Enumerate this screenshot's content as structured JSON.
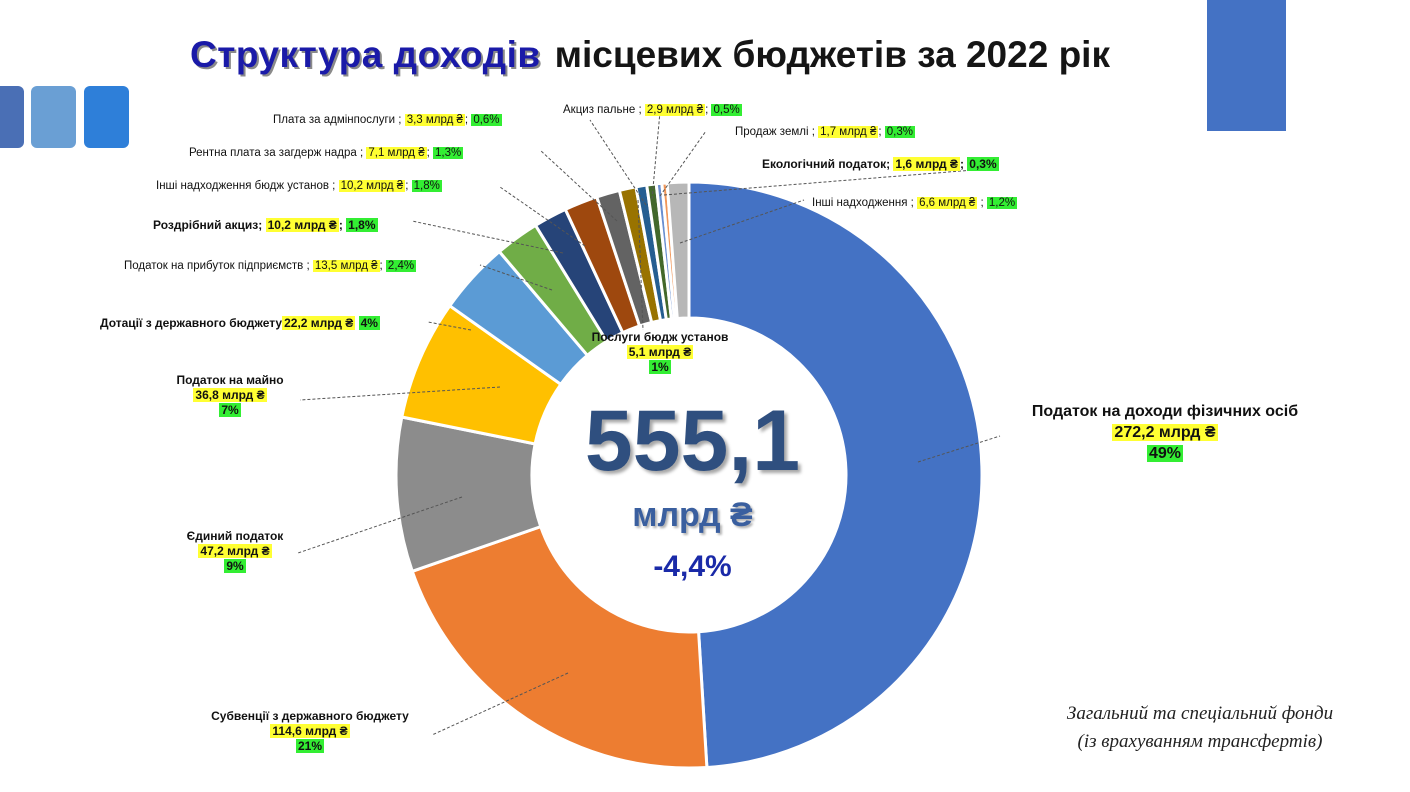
{
  "title": {
    "part1": "Структура доходів",
    "part2": "місцевих бюджетів за 2022 рік"
  },
  "center": {
    "value": "555,1",
    "unit": "млрд ₴",
    "change": "-4,4%"
  },
  "note": {
    "line1": "Загальний та спеціальний фонди",
    "line2": "(із врахуванням трансфертів)"
  },
  "colors": {
    "accent": "#4472c4",
    "title": "#1a1aa8",
    "highlight_value": "#ffff33",
    "highlight_pct": "#33ee33"
  },
  "chart_data": {
    "type": "pie",
    "variant": "donut",
    "unit": "млрд ₴",
    "total": 555.1,
    "slices": [
      {
        "name": "Податок на доходи фізичних осіб",
        "amount": "272,2 млрд ₴",
        "pct": "49%",
        "value": 272.2,
        "color": "#4472c4"
      },
      {
        "name": "Субвенції з державного бюджету",
        "amount": "114,6 млрд ₴",
        "pct": "21%",
        "value": 114.6,
        "color": "#ed7d31"
      },
      {
        "name": "Єдиний податок",
        "amount": "47,2 млрд ₴",
        "pct": "9%",
        "value": 47.2,
        "color": "#8c8c8c"
      },
      {
        "name": "Податок на майно",
        "amount": "36,8 млрд ₴",
        "pct": "7%",
        "value": 36.8,
        "color": "#ffc000"
      },
      {
        "name": "Дотації з державного бюджету",
        "amount": "22,2 млрд ₴",
        "pct": "4%",
        "value": 22.2,
        "color": "#5b9bd5"
      },
      {
        "name": "Податок на прибуток підприємств",
        "amount": "13,5 млрд ₴",
        "pct": "2,4%",
        "value": 13.5,
        "color": "#70ad47"
      },
      {
        "name": "Роздрібний акциз",
        "amount": "10,2 млрд ₴",
        "pct": "1,8%",
        "value": 10.2,
        "color": "#264478"
      },
      {
        "name": "Інші надходження бюдж установ",
        "amount": "10,2 млрд ₴",
        "pct": "1,8%",
        "value": 10.2,
        "color": "#9e480e"
      },
      {
        "name": "Рентна плата за загдерж надра",
        "amount": "7,1 млрд ₴",
        "pct": "1,3%",
        "value": 7.1,
        "color": "#636363"
      },
      {
        "name": "Послуги бюдж установ",
        "amount": "5,1 млрд ₴",
        "pct": "1%",
        "value": 5.1,
        "color": "#997300"
      },
      {
        "name": "Плата за адмінпослуги",
        "amount": "3,3 млрд ₴",
        "pct": "0,6%",
        "value": 3.3,
        "color": "#255e91"
      },
      {
        "name": "Акциз пальне",
        "amount": "2,9 млрд ₴",
        "pct": "0,5%",
        "value": 2.9,
        "color": "#43682b"
      },
      {
        "name": "Продаж землі",
        "amount": "1,7 млрд ₴",
        "pct": "0,3%",
        "value": 1.7,
        "color": "#698ed0"
      },
      {
        "name": "Екологічний податок",
        "amount": "1,6 млрд ₴",
        "pct": "0,3%",
        "value": 1.6,
        "color": "#f1975a"
      },
      {
        "name": "Інші надходження",
        "amount": "6,6 млрд ₴",
        "pct": "1,2%",
        "value": 6.6,
        "color": "#b7b7b7"
      }
    ]
  }
}
